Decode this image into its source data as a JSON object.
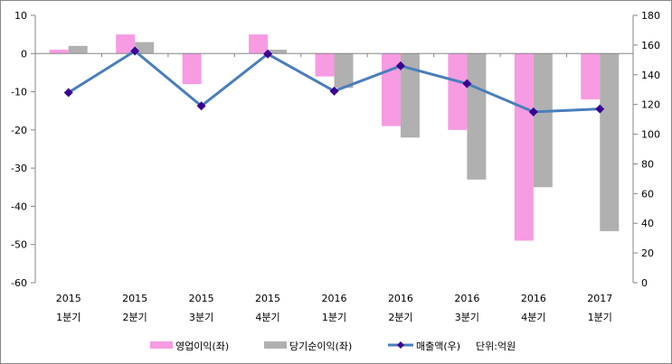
{
  "chart_data": {
    "type": "bar+line",
    "categories": [
      [
        "2015",
        "1분기"
      ],
      [
        "2015",
        "2분기"
      ],
      [
        "2015",
        "3분기"
      ],
      [
        "2015",
        "4분기"
      ],
      [
        "2016",
        "1분기"
      ],
      [
        "2016",
        "2분기"
      ],
      [
        "2016",
        "3분기"
      ],
      [
        "2016",
        "4분기"
      ],
      [
        "2017",
        "1분기"
      ]
    ],
    "left_axis": {
      "range": [
        -60,
        10
      ],
      "ticks": [
        10,
        0,
        -10,
        -20,
        -30,
        -40,
        -50,
        -60
      ]
    },
    "right_axis": {
      "range": [
        0,
        180
      ],
      "ticks": [
        180,
        160,
        140,
        120,
        100,
        80,
        60,
        40,
        20,
        0
      ]
    },
    "series": [
      {
        "name": "영업이익(좌)",
        "type": "bar",
        "axis": "left",
        "color": "#f79be2",
        "values": [
          1,
          5,
          -8,
          5,
          -6,
          -19,
          -20,
          -49,
          -12
        ]
      },
      {
        "name": "당기순이익(좌)",
        "type": "bar",
        "axis": "left",
        "color": "#b0b0b0",
        "values": [
          2,
          3,
          0,
          1,
          -9,
          -22,
          -33,
          -35,
          -46.5
        ]
      },
      {
        "name": "매출액(우)",
        "type": "line",
        "axis": "right",
        "color": "#4a7ebb",
        "marker_color": "#3a0090",
        "values": [
          128,
          156,
          119,
          154,
          129,
          146,
          134,
          115,
          117
        ]
      }
    ],
    "unit_note": "단위:억원",
    "legend_position": "bottom",
    "grid": false
  }
}
